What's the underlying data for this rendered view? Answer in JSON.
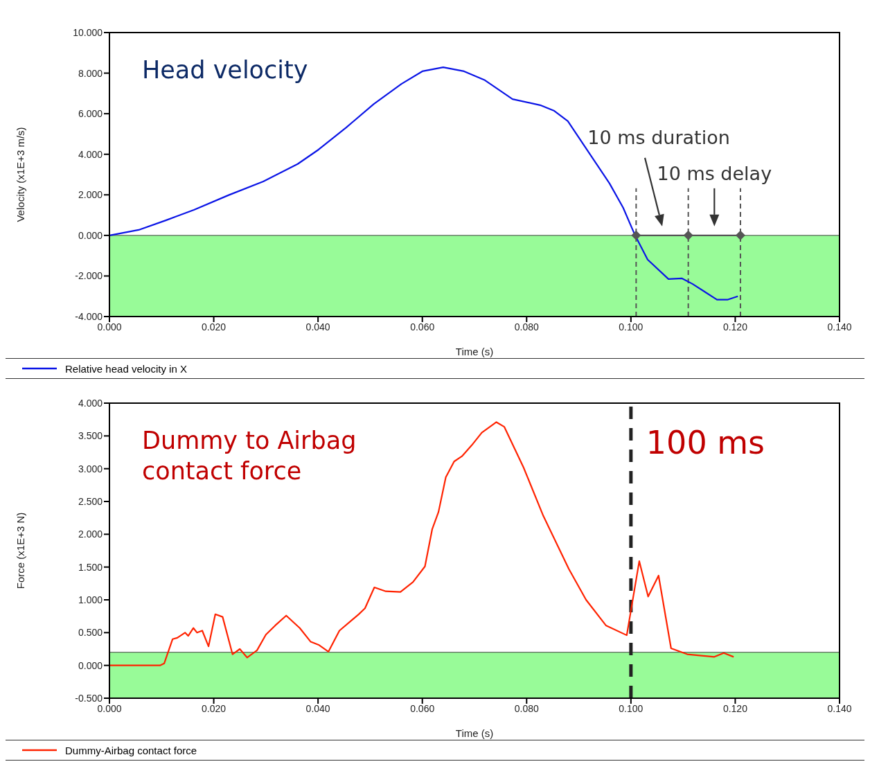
{
  "chart_data": [
    {
      "type": "line",
      "title": "Head velocity",
      "xlabel": "Time (s)",
      "ylabel": "Velocity (x1E+3 m/s)",
      "series": [
        {
          "name": "Relative head velocity in X",
          "color": "#0a14e6",
          "x": [
            0,
            0.0056,
            0.0109,
            0.0162,
            0.0228,
            0.0295,
            0.0361,
            0.0401,
            0.0454,
            0.0507,
            0.056,
            0.06,
            0.064,
            0.068,
            0.072,
            0.0773,
            0.0826,
            0.0853,
            0.0879,
            0.0919,
            0.0959,
            0.0985,
            0.1008,
            0.1032,
            0.1072,
            0.1098,
            0.1118,
            0.1165,
            0.1185,
            0.1205
          ],
          "values": [
            0,
            0.27,
            0.75,
            1.26,
            1.98,
            2.66,
            3.52,
            4.23,
            5.32,
            6.48,
            7.47,
            8.09,
            8.29,
            8.09,
            7.65,
            6.72,
            6.42,
            6.14,
            5.63,
            4.1,
            2.56,
            1.37,
            0,
            -1.19,
            -2.15,
            -2.12,
            -2.39,
            -3.17,
            -3.17,
            -3.0
          ]
        },
        {
          "color": "#555555",
          "x": [
            0.101,
            0.111,
            0.121
          ],
          "values": [
            0,
            0,
            0
          ],
          "marker": "diamond"
        }
      ],
      "xlim": [
        0,
        0.14
      ],
      "xticks": [
        {
          "value": 0,
          "label": "0.000"
        },
        {
          "value": 0.02,
          "label": "0.020"
        },
        {
          "value": 0.04,
          "label": "0.040"
        },
        {
          "value": 0.06,
          "label": "0.060"
        },
        {
          "value": 0.08,
          "label": "0.080"
        },
        {
          "value": 0.1,
          "label": "0.100"
        },
        {
          "value": 0.12,
          "label": "0.120"
        },
        {
          "value": 0.14,
          "label": "0.140"
        }
      ],
      "ylim": [
        -4,
        10
      ],
      "yticks": [
        {
          "value": -4,
          "label": "-4.000"
        },
        {
          "value": -2,
          "label": "-2.000"
        },
        {
          "value": 0,
          "label": "0.000"
        },
        {
          "value": 2,
          "label": "2.000"
        },
        {
          "value": 4,
          "label": "4.000"
        },
        {
          "value": 6,
          "label": "6.000"
        },
        {
          "value": 8,
          "label": "8.000"
        },
        {
          "value": 10,
          "label": "10.000"
        }
      ],
      "bands": [
        {
          "axis": "y",
          "from": -4,
          "to": 0,
          "color": "#98fb98"
        }
      ],
      "ref_lines": [
        {
          "axis": "x",
          "value": 0.101,
          "color": "#555555",
          "line_style": "dashed"
        },
        {
          "axis": "x",
          "value": 0.111,
          "color": "#555555",
          "line_style": "dashed"
        },
        {
          "axis": "x",
          "value": 0.121,
          "color": "#555555",
          "line_style": "dashed"
        }
      ],
      "annotations": [
        "10 ms duration",
        "10 ms delay"
      ],
      "legend": "bottom",
      "marker": "none",
      "line_style": "solid"
    },
    {
      "type": "line",
      "title": "Dummy to Airbag contact force",
      "xlabel": "Time (s)",
      "ylabel": "Force (x1E+3 N)",
      "series": [
        {
          "name": "Dummy-Airbag contact force",
          "color": "#ff2200",
          "x": [
            0,
            0.0097,
            0.0105,
            0.0121,
            0.013,
            0.0145,
            0.0151,
            0.0161,
            0.0168,
            0.0178,
            0.019,
            0.0203,
            0.0217,
            0.0236,
            0.025,
            0.0264,
            0.0283,
            0.03,
            0.0318,
            0.0339,
            0.0365,
            0.0386,
            0.0402,
            0.042,
            0.0441,
            0.0478,
            0.049,
            0.0508,
            0.053,
            0.0558,
            0.0582,
            0.0605,
            0.0619,
            0.0631,
            0.0645,
            0.0661,
            0.0676,
            0.0695,
            0.0714,
            0.0742,
            0.0757,
            0.0794,
            0.0832,
            0.0881,
            0.0914,
            0.0952,
            0.0992,
            0.1016,
            0.1033,
            0.1053,
            0.1077,
            0.1108,
            0.116,
            0.1178,
            0.1197
          ],
          "values": [
            0,
            0,
            0.03,
            0.4,
            0.42,
            0.5,
            0.45,
            0.57,
            0.5,
            0.53,
            0.29,
            0.78,
            0.74,
            0.17,
            0.25,
            0.12,
            0.23,
            0.47,
            0.61,
            0.76,
            0.57,
            0.36,
            0.31,
            0.21,
            0.53,
            0.78,
            0.87,
            1.19,
            1.13,
            1.12,
            1.27,
            1.51,
            2.08,
            2.34,
            2.87,
            3.11,
            3.19,
            3.36,
            3.55,
            3.71,
            3.64,
            3.02,
            2.28,
            1.47,
            1.0,
            0.61,
            0.46,
            1.59,
            1.05,
            1.37,
            0.26,
            0.17,
            0.13,
            0.19,
            0.13
          ]
        }
      ],
      "xlim": [
        0,
        0.14
      ],
      "xticks": [
        {
          "value": 0,
          "label": "0.000"
        },
        {
          "value": 0.02,
          "label": "0.020"
        },
        {
          "value": 0.04,
          "label": "0.040"
        },
        {
          "value": 0.06,
          "label": "0.060"
        },
        {
          "value": 0.08,
          "label": "0.080"
        },
        {
          "value": 0.1,
          "label": "0.100"
        },
        {
          "value": 0.12,
          "label": "0.120"
        },
        {
          "value": 0.14,
          "label": "0.140"
        }
      ],
      "ylim": [
        -0.5,
        4
      ],
      "yticks": [
        {
          "value": -0.5,
          "label": "-0.500"
        },
        {
          "value": 0,
          "label": "0.000"
        },
        {
          "value": 0.5,
          "label": "0.500"
        },
        {
          "value": 1,
          "label": "1.000"
        },
        {
          "value": 1.5,
          "label": "1.500"
        },
        {
          "value": 2,
          "label": "2.000"
        },
        {
          "value": 2.5,
          "label": "2.500"
        },
        {
          "value": 3,
          "label": "3.000"
        },
        {
          "value": 3.5,
          "label": "3.500"
        },
        {
          "value": 4,
          "label": "4.000"
        }
      ],
      "bands": [
        {
          "axis": "y",
          "from": -0.5,
          "to": 0.2,
          "color": "#98fb98"
        }
      ],
      "ref_lines": [
        {
          "axis": "x",
          "value": 0.1,
          "label": "100 ms",
          "color": "#222222",
          "line_style": "dashed"
        }
      ],
      "legend": "bottom",
      "marker": "none",
      "line_style": "solid"
    }
  ]
}
